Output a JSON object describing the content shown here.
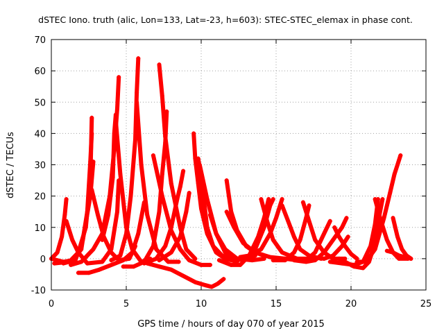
{
  "chart_data": {
    "type": "scatter",
    "title": "dSTEC Iono. truth (alic, Lon=133, Lat=-23, h=603): STEC-STEC_elemax in phase cont.",
    "xlabel": "GPS time / hours of day 070 of year 2015",
    "ylabel": "dSTEC  / TECUs",
    "xlim": [
      0,
      25
    ],
    "ylim": [
      -10,
      70
    ],
    "xticks": [
      "0",
      "5",
      "10",
      "15",
      "20",
      "25"
    ],
    "yticks": [
      "-10",
      "0",
      "10",
      "20",
      "30",
      "40",
      "50",
      "60",
      "70"
    ],
    "grid": true,
    "marker": "+",
    "color": "#ff0000",
    "series": [
      {
        "points": [
          [
            0,
            0
          ],
          [
            0.4,
            2
          ],
          [
            0.7,
            7
          ],
          [
            0.9,
            14
          ],
          [
            1.0,
            19
          ]
        ]
      },
      {
        "points": [
          [
            0,
            0
          ],
          [
            0.8,
            -1
          ],
          [
            1.4,
            -0.5
          ],
          [
            2.0,
            3
          ],
          [
            2.4,
            15
          ],
          [
            2.6,
            31
          ],
          [
            2.7,
            40
          ]
        ]
      },
      {
        "points": [
          [
            0.2,
            -1.5
          ],
          [
            1.2,
            -1
          ],
          [
            1.8,
            2
          ],
          [
            2.3,
            10
          ],
          [
            2.6,
            25
          ],
          [
            2.7,
            45
          ]
        ]
      },
      {
        "points": [
          [
            0.8,
            -1.5
          ],
          [
            1.6,
            -0.5
          ],
          [
            2.1,
            6
          ],
          [
            2.6,
            20
          ],
          [
            2.8,
            31
          ]
        ]
      },
      {
        "points": [
          [
            1.0,
            12
          ],
          [
            1.4,
            6
          ],
          [
            1.8,
            2
          ],
          [
            2.4,
            -1.5
          ],
          [
            3.4,
            -1
          ],
          [
            4.0,
            3
          ],
          [
            4.4,
            15
          ],
          [
            4.5,
            25
          ]
        ]
      },
      {
        "points": [
          [
            1.8,
            -4.5
          ],
          [
            2.5,
            -4.5
          ],
          [
            3.2,
            -3.5
          ],
          [
            4.0,
            -2
          ],
          [
            4.8,
            -0.5
          ],
          [
            5.4,
            2
          ],
          [
            5.8,
            8
          ],
          [
            6.0,
            13
          ],
          [
            6.2,
            18
          ]
        ]
      },
      {
        "points": [
          [
            1.3,
            -2
          ],
          [
            2.0,
            -1
          ],
          [
            2.8,
            3
          ],
          [
            3.4,
            8
          ],
          [
            3.9,
            20
          ],
          [
            4.2,
            35
          ],
          [
            4.4,
            48
          ],
          [
            4.5,
            58
          ]
        ]
      },
      {
        "points": [
          [
            3.4,
            6
          ],
          [
            3.8,
            14
          ],
          [
            4.1,
            26
          ],
          [
            4.2,
            40
          ],
          [
            4.3,
            46
          ]
        ]
      },
      {
        "points": [
          [
            2.7,
            22
          ],
          [
            3.1,
            14
          ],
          [
            3.5,
            7
          ],
          [
            4.0,
            2
          ],
          [
            4.5,
            -0.5
          ],
          [
            5.2,
            0
          ],
          [
            5.6,
            4
          ]
        ]
      },
      {
        "points": [
          [
            4.3,
            44
          ],
          [
            4.6,
            27
          ],
          [
            5.0,
            10
          ],
          [
            5.4,
            3
          ],
          [
            6.0,
            -1
          ],
          [
            6.6,
            0
          ]
        ]
      },
      {
        "points": [
          [
            4.0,
            -0.5
          ],
          [
            4.6,
            1
          ],
          [
            5.0,
            8
          ],
          [
            5.3,
            20
          ],
          [
            5.6,
            38
          ],
          [
            5.7,
            53
          ],
          [
            5.8,
            64
          ]
        ]
      },
      {
        "points": [
          [
            4.8,
            -2.5
          ],
          [
            5.5,
            -2.5
          ],
          [
            6.2,
            -1
          ],
          [
            6.8,
            4
          ],
          [
            7.2,
            15
          ],
          [
            7.4,
            27
          ],
          [
            7.6,
            37
          ],
          [
            7.7,
            47
          ]
        ]
      },
      {
        "points": [
          [
            5.7,
            50
          ],
          [
            6.0,
            30
          ],
          [
            6.4,
            14
          ],
          [
            7.0,
            3
          ],
          [
            7.8,
            -1
          ],
          [
            8.5,
            -1
          ]
        ]
      },
      {
        "points": [
          [
            6.2,
            -1.5
          ],
          [
            7.0,
            0
          ],
          [
            7.6,
            4
          ],
          [
            8.0,
            10
          ],
          [
            8.4,
            19
          ],
          [
            8.6,
            23
          ],
          [
            8.8,
            28
          ]
        ]
      },
      {
        "points": [
          [
            7.2,
            62
          ],
          [
            7.4,
            52
          ],
          [
            7.6,
            39
          ],
          [
            8.0,
            24
          ],
          [
            8.6,
            10
          ],
          [
            9.0,
            3
          ],
          [
            9.6,
            0
          ]
        ]
      },
      {
        "points": [
          [
            6.8,
            33
          ],
          [
            7.4,
            20
          ],
          [
            8.0,
            9
          ],
          [
            8.6,
            3
          ],
          [
            9.2,
            -0.5
          ],
          [
            10.0,
            -2
          ],
          [
            10.6,
            -2
          ]
        ]
      },
      {
        "points": [
          [
            6.4,
            -1.5
          ],
          [
            7.2,
            -2.5
          ],
          [
            8.0,
            -3.5
          ],
          [
            8.8,
            -5.5
          ],
          [
            9.6,
            -7.5
          ],
          [
            10.3,
            -8.5
          ],
          [
            10.7,
            -9
          ],
          [
            11.1,
            -8
          ],
          [
            11.5,
            -6.5
          ]
        ]
      },
      {
        "points": [
          [
            7.2,
            -0.5
          ],
          [
            8.0,
            2
          ],
          [
            8.6,
            7
          ],
          [
            9.0,
            15
          ],
          [
            9.2,
            21
          ]
        ]
      },
      {
        "points": [
          [
            9.5,
            40
          ],
          [
            9.6,
            32
          ],
          [
            9.8,
            24
          ],
          [
            10.0,
            16
          ],
          [
            10.4,
            8
          ],
          [
            11.0,
            2
          ],
          [
            11.6,
            0
          ],
          [
            12.4,
            -1
          ]
        ]
      },
      {
        "points": [
          [
            9.8,
            32
          ],
          [
            10.0,
            26
          ],
          [
            10.2,
            18
          ],
          [
            10.4,
            10
          ],
          [
            10.8,
            4
          ],
          [
            11.4,
            1
          ],
          [
            12.0,
            0
          ]
        ]
      },
      {
        "points": [
          [
            9.9,
            30
          ],
          [
            10.4,
            19
          ],
          [
            11.0,
            8
          ],
          [
            11.6,
            2
          ],
          [
            12.3,
            0
          ],
          [
            13.0,
            0
          ],
          [
            13.6,
            1
          ]
        ]
      },
      {
        "points": [
          [
            10.6,
            14
          ],
          [
            11.0,
            8
          ],
          [
            11.6,
            3
          ],
          [
            12.4,
            0
          ],
          [
            13.4,
            -0.5
          ],
          [
            14.2,
            0
          ]
        ]
      },
      {
        "points": [
          [
            11.7,
            25
          ],
          [
            12.0,
            15
          ],
          [
            12.4,
            9
          ],
          [
            13.0,
            4
          ],
          [
            13.6,
            2
          ],
          [
            14.2,
            1
          ]
        ]
      },
      {
        "points": [
          [
            11.2,
            -0.5
          ],
          [
            12.0,
            -2
          ],
          [
            12.6,
            -2
          ],
          [
            13.2,
            1
          ],
          [
            13.8,
            7
          ],
          [
            14.2,
            13
          ],
          [
            14.5,
            19
          ]
        ]
      },
      {
        "points": [
          [
            12.3,
            -0.5
          ],
          [
            13.0,
            0
          ],
          [
            13.6,
            3
          ],
          [
            14.2,
            10
          ],
          [
            14.6,
            17
          ],
          [
            14.8,
            19
          ]
        ]
      },
      {
        "points": [
          [
            12.6,
            0.5
          ],
          [
            13.2,
            1
          ],
          [
            14.0,
            3
          ],
          [
            14.6,
            8
          ],
          [
            15.0,
            13
          ],
          [
            15.4,
            19
          ]
        ]
      },
      {
        "points": [
          [
            11.7,
            15
          ],
          [
            12.2,
            10
          ],
          [
            12.8,
            5
          ],
          [
            13.6,
            2
          ],
          [
            14.6,
            0.5
          ],
          [
            15.6,
            0
          ]
        ]
      },
      {
        "points": [
          [
            14.0,
            19
          ],
          [
            14.4,
            12
          ],
          [
            14.8,
            6
          ],
          [
            15.4,
            2
          ],
          [
            16.4,
            0
          ],
          [
            17.2,
            0
          ]
        ]
      },
      {
        "points": [
          [
            14.8,
            -0.5
          ],
          [
            15.6,
            -0.5
          ],
          [
            16.2,
            2
          ],
          [
            16.6,
            6
          ],
          [
            17.0,
            13
          ],
          [
            17.2,
            17
          ]
        ]
      },
      {
        "points": [
          [
            15.4,
            17
          ],
          [
            15.8,
            12
          ],
          [
            16.2,
            7
          ],
          [
            16.6,
            3
          ],
          [
            17.2,
            1
          ],
          [
            18.0,
            0
          ]
        ]
      },
      {
        "points": [
          [
            15.6,
            0
          ],
          [
            16.4,
            -0.5
          ],
          [
            17.0,
            -0.5
          ],
          [
            17.6,
            2
          ],
          [
            18.0,
            6
          ],
          [
            18.4,
            10
          ],
          [
            18.6,
            12
          ]
        ]
      },
      {
        "points": [
          [
            16.2,
            -0.5
          ],
          [
            17.0,
            -1
          ],
          [
            17.6,
            -0.5
          ],
          [
            18.2,
            2
          ],
          [
            18.8,
            6
          ],
          [
            19.4,
            10
          ],
          [
            19.7,
            13
          ]
        ]
      },
      {
        "points": [
          [
            16.8,
            18
          ],
          [
            17.2,
            12
          ],
          [
            17.6,
            6
          ],
          [
            18.2,
            2
          ],
          [
            18.8,
            0
          ],
          [
            19.6,
            0
          ]
        ]
      },
      {
        "points": [
          [
            17.4,
            0.5
          ],
          [
            18.2,
            0
          ],
          [
            18.8,
            1
          ],
          [
            19.4,
            4
          ],
          [
            19.8,
            7
          ]
        ]
      },
      {
        "points": [
          [
            18.9,
            10
          ],
          [
            19.2,
            7
          ],
          [
            19.6,
            4
          ],
          [
            20.0,
            1.5
          ],
          [
            20.4,
            0
          ]
        ]
      },
      {
        "points": [
          [
            18.6,
            -1
          ],
          [
            19.4,
            -1.5
          ],
          [
            20.2,
            -2
          ],
          [
            20.8,
            -1
          ],
          [
            21.3,
            4
          ],
          [
            21.6,
            11
          ],
          [
            21.8,
            19
          ]
        ]
      },
      {
        "points": [
          [
            19.2,
            0
          ],
          [
            19.6,
            -1
          ],
          [
            20.2,
            -2.5
          ],
          [
            20.8,
            -3
          ],
          [
            21.2,
            -1
          ],
          [
            21.6,
            5
          ],
          [
            21.9,
            14
          ],
          [
            22.1,
            19
          ]
        ]
      },
      {
        "points": [
          [
            20.4,
            -1
          ],
          [
            21.0,
            -1
          ],
          [
            21.6,
            3
          ],
          [
            22.2,
            13
          ],
          [
            22.6,
            21
          ],
          [
            22.9,
            27
          ],
          [
            23.1,
            30
          ],
          [
            23.3,
            33
          ]
        ]
      },
      {
        "points": [
          [
            21.6,
            19
          ],
          [
            22.0,
            12
          ],
          [
            22.4,
            6
          ],
          [
            22.8,
            2
          ],
          [
            23.2,
            0
          ],
          [
            23.8,
            0
          ]
        ]
      },
      {
        "points": [
          [
            22.8,
            13
          ],
          [
            23.1,
            7
          ],
          [
            23.4,
            3
          ],
          [
            23.7,
            1
          ],
          [
            24.0,
            0
          ]
        ]
      },
      {
        "points": [
          [
            22.4,
            2.5
          ],
          [
            22.8,
            2
          ],
          [
            23.2,
            1
          ],
          [
            23.6,
            0.5
          ],
          [
            24.0,
            0
          ]
        ]
      }
    ]
  }
}
